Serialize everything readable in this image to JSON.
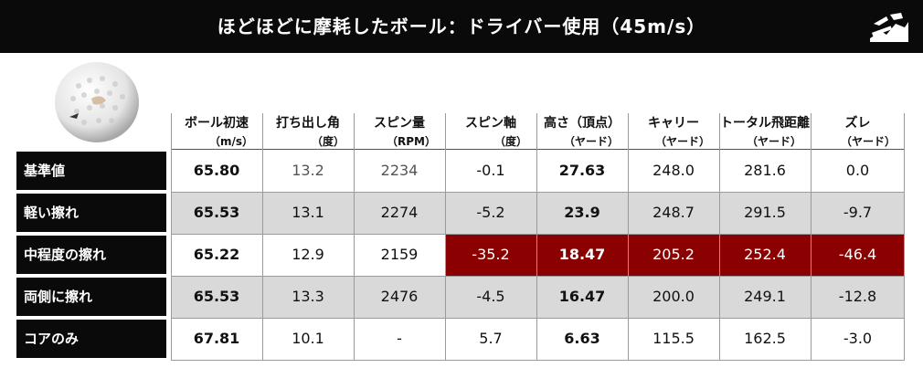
{
  "title": "ほどほどに摩耗したボール：ドライバー使用（45m/s）",
  "headers": [
    {
      "name": "ボール初速",
      "unit": "（m/s）"
    },
    {
      "name": "打ち出し角",
      "unit": "（度）"
    },
    {
      "name": "スピン量",
      "unit": "（RPM）"
    },
    {
      "name": "スピン軸",
      "unit": "（度）"
    },
    {
      "name": "高さ（頂点）",
      "unit": "（ヤード）"
    },
    {
      "name": "キャリー",
      "unit": "（ヤード）"
    },
    {
      "name": "トータル飛距離",
      "unit": "（ヤード）"
    },
    {
      "name": "ズレ",
      "unit": "（ヤード）"
    }
  ],
  "rows": [
    {
      "label": "基準値",
      "values": [
        "65.80",
        "13.2",
        "2234",
        "-0.1",
        "27.63",
        "248.0",
        "281.6",
        "0.0"
      ]
    },
    {
      "label": "軽い擦れ",
      "values": [
        "65.53",
        "13.1",
        "2274",
        "-5.2",
        "23.9",
        "248.7",
        "291.5",
        "-9.7"
      ]
    },
    {
      "label": "中程度の擦れ",
      "values": [
        "65.22",
        "12.9",
        "2159",
        "-35.2",
        "18.47",
        "205.2",
        "252.4",
        "-46.4"
      ]
    },
    {
      "label": "両側に擦れ",
      "values": [
        "65.53",
        "13.3",
        "2476",
        "-4.5",
        "16.47",
        "200.0",
        "249.1",
        "-12.8"
      ]
    },
    {
      "label": "コアのみ",
      "values": [
        "67.81",
        "10.1",
        "-",
        "5.7",
        "6.63",
        "115.5",
        "162.5",
        "-3.0"
      ]
    }
  ],
  "colors": {
    "title_bg": "#0a0a0a",
    "row_label_bg": "#0a0a0a",
    "shaded_row": "#d9d9d9",
    "highlight": "#8b0000"
  },
  "icons": {
    "logo": "logo-icon",
    "ball": "golf-ball-image"
  }
}
